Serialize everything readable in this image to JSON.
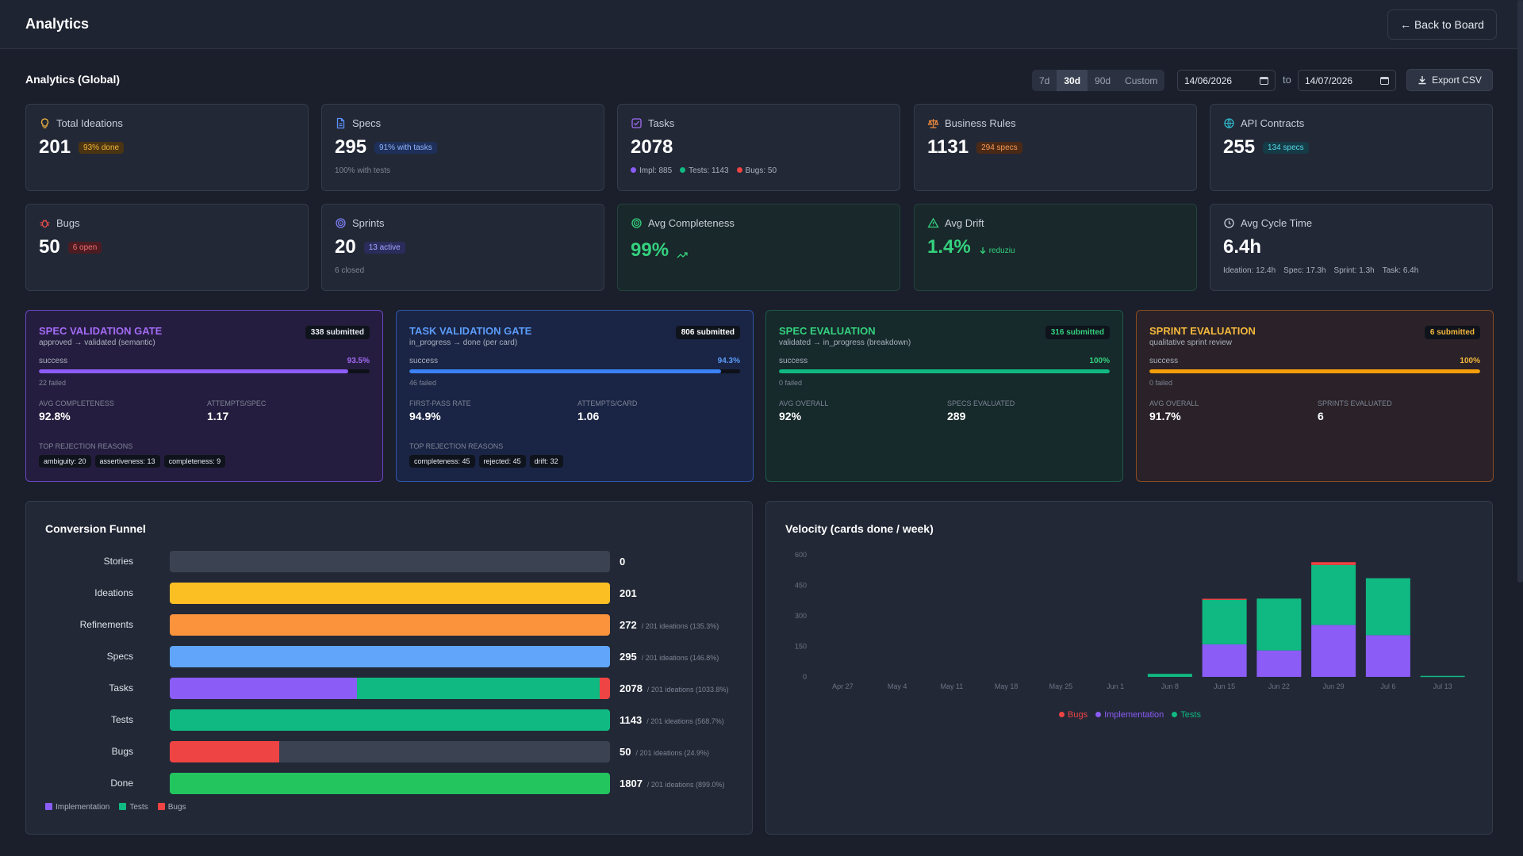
{
  "header": {
    "title": "Analytics",
    "back_label": "← Back to Board"
  },
  "page_heading": "Analytics (Global)",
  "range": {
    "options": [
      "7d",
      "30d",
      "90d",
      "Custom"
    ],
    "selected": "30d",
    "from": "14/06/2026",
    "to_label": "to",
    "to": "14/07/2026",
    "export_label": "Export CSV"
  },
  "cards": [
    {
      "title": "Total Ideations",
      "value": "201",
      "badge": "93% done",
      "icon": "lightbulb-icon",
      "color": "#f5b83d"
    },
    {
      "title": "Specs",
      "value": "295",
      "badge": "91% with tasks",
      "sub": "100% with tests",
      "icon": "document-icon",
      "color": "#5b8ff9"
    },
    {
      "title": "Tasks",
      "value": "2078",
      "sub_items": [
        "Impl: 885",
        "Tests: 1143",
        "Bugs: 50"
      ],
      "icon": "checkbox-icon",
      "color": "#a06cf5"
    },
    {
      "title": "Business Rules",
      "value": "1131",
      "badge": "294 specs",
      "icon": "scale-icon",
      "color": "#f08a3c"
    },
    {
      "title": "API Contracts",
      "value": "255",
      "badge": "134 specs",
      "icon": "globe-icon",
      "color": "#2fb6c9"
    },
    {
      "title": "Bugs",
      "value": "50",
      "badge": "6 open",
      "icon": "bug-icon",
      "color": "#ef4c4c"
    },
    {
      "title": "Sprints",
      "value": "20",
      "badge": "13 active",
      "sub": "6 closed",
      "icon": "target-icon",
      "color": "#7c7ff5"
    },
    {
      "title": "Avg Completeness",
      "value": "99%",
      "icon": "target-icon",
      "color": "#34d17f"
    },
    {
      "title": "Avg Drift",
      "value": "1.4%",
      "trend": "reduziu",
      "icon": "warning-icon",
      "color": "#34d17f"
    },
    {
      "title": "Avg Cycle Time",
      "value": "6.4h",
      "sub_items": [
        "Ideation: 12.4h",
        "Spec: 17.3h",
        "Sprint: 1.3h",
        "Task: 6.4h"
      ],
      "icon": "clock-icon",
      "color": "#c9ced8"
    }
  ],
  "gates": [
    {
      "title": "SPEC VALIDATION GATE",
      "subtitle": "approved → validated (semantic)",
      "submitted": "338 submitted",
      "success_label": "success",
      "rate": 93.5,
      "pct": "93.5%",
      "failed": "22 failed",
      "m1_label": "AVG COMPLETENESS",
      "m1": "92.8%",
      "m2_label": "ATTEMPTS/SPEC",
      "m2": "1.17",
      "reasons_label": "TOP REJECTION REASONS",
      "reasons": [
        "ambiguity: 20",
        "assertiveness: 13",
        "completeness: 9"
      ],
      "color": "#a36bf6",
      "bar": "#8b5cf6",
      "bg": "#251d3f",
      "border": "#6b46c1"
    },
    {
      "title": "TASK VALIDATION GATE",
      "subtitle": "in_progress → done (per card)",
      "submitted": "806 submitted",
      "success_label": "success",
      "rate": 94.3,
      "pct": "94.3%",
      "failed": "46 failed",
      "m1_label": "FIRST-PASS RATE",
      "m1": "94.9%",
      "m2_label": "ATTEMPTS/CARD",
      "m2": "1.06",
      "reasons_label": "TOP REJECTION REASONS",
      "reasons": [
        "completeness: 45",
        "rejected: 45",
        "drift: 32"
      ],
      "color": "#5b9cf9",
      "bar": "#3b82f6",
      "bg": "#1a2444",
      "border": "#2f55a8"
    },
    {
      "title": "SPEC EVALUATION",
      "subtitle": "validated → in_progress (breakdown)",
      "submitted": "316 submitted",
      "success_label": "success",
      "rate": 100,
      "pct": "100%",
      "failed": "0 failed",
      "m1_label": "AVG OVERALL",
      "m1": "92%",
      "m2_label": "SPECS EVALUATED",
      "m2": "289",
      "color": "#34d17f",
      "bar": "#10b981",
      "bg": "#16292b",
      "border": "#1f5a48"
    },
    {
      "title": "SPRINT EVALUATION",
      "subtitle": "qualitative sprint review",
      "submitted": "6 submitted",
      "success_label": "success",
      "rate": 100,
      "pct": "100%",
      "failed": "0 failed",
      "m1_label": "AVG OVERALL",
      "m1": "91.7%",
      "m2_label": "SPRINTS EVALUATED",
      "m2": "6",
      "color": "#f5b83d",
      "bar": "#f59e0b",
      "bg": "#2a2228",
      "border": "#8a4a22"
    }
  ],
  "funnel": {
    "title": "Conversion Funnel",
    "rows": [
      {
        "label": "Stories",
        "value": "0",
        "note": "",
        "segments": []
      },
      {
        "label": "Ideations",
        "value": "201",
        "note": "",
        "segments": [
          {
            "pct": 100,
            "color": "#fbbf24"
          }
        ]
      },
      {
        "label": "Refinements",
        "value": "272",
        "note": "/ 201 ideations (135.3%)",
        "segments": [
          {
            "pct": 100,
            "color": "#fb923c"
          }
        ]
      },
      {
        "label": "Specs",
        "value": "295",
        "note": "/ 201 ideations (146.8%)",
        "segments": [
          {
            "pct": 100,
            "color": "#60a5fa"
          }
        ]
      },
      {
        "label": "Tasks",
        "value": "2078",
        "note": "/ 201 ideations (1033.8%)",
        "segments": [
          {
            "pct": 42.6,
            "color": "#8b5cf6"
          },
          {
            "pct": 55.0,
            "color": "#10b981"
          },
          {
            "pct": 2.4,
            "color": "#ef4444"
          }
        ]
      },
      {
        "label": "Tests",
        "value": "1143",
        "note": "/ 201 ideations (568.7%)",
        "segments": [
          {
            "pct": 100,
            "color": "#10b981"
          }
        ]
      },
      {
        "label": "Bugs",
        "value": "50",
        "note": "/ 201 ideations (24.9%)",
        "segments": [
          {
            "pct": 24.9,
            "color": "#ef4444"
          }
        ]
      },
      {
        "label": "Done",
        "value": "1807",
        "note": "/ 201 ideations (899.0%)",
        "segments": [
          {
            "pct": 100,
            "color": "#22c55e"
          }
        ]
      }
    ],
    "legend": [
      {
        "label": "Implementation",
        "color": "#8b5cf6"
      },
      {
        "label": "Tests",
        "color": "#10b981"
      },
      {
        "label": "Bugs",
        "color": "#ef4444"
      }
    ]
  },
  "chart_data": {
    "type": "bar",
    "title": "Velocity (cards done / week)",
    "categories": [
      "Apr 27",
      "May 4",
      "May 11",
      "May 18",
      "May 25",
      "Jun 1",
      "Jun 8",
      "Jun 15",
      "Jun 22",
      "Jun 29",
      "Jul 6",
      "Jul 13"
    ],
    "series": [
      {
        "name": "Bugs",
        "color": "#ef4444",
        "values": [
          0,
          0,
          0,
          0,
          0,
          0,
          0,
          4,
          0,
          14,
          0,
          0
        ]
      },
      {
        "name": "Implementation",
        "color": "#8b5cf6",
        "values": [
          0,
          0,
          0,
          0,
          0,
          0,
          0,
          160,
          130,
          255,
          205,
          0
        ]
      },
      {
        "name": "Tests",
        "color": "#10b981",
        "values": [
          0,
          0,
          0,
          0,
          0,
          0,
          15,
          220,
          255,
          295,
          280,
          5
        ]
      }
    ],
    "stacked": true,
    "yticks": [
      0,
      150,
      300,
      450,
      600
    ],
    "ylim": [
      0,
      600
    ],
    "grid": false,
    "legend_position": "bottom-center"
  }
}
